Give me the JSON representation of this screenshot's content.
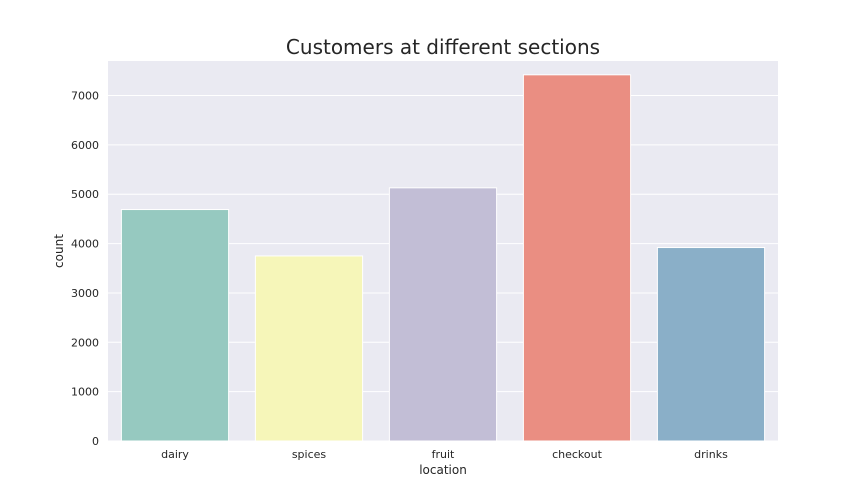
{
  "chart_data": {
    "type": "bar",
    "title": "Customers at different sections",
    "xlabel": "location",
    "ylabel": "count",
    "categories": [
      "dairy",
      "spices",
      "fruit",
      "checkout",
      "drinks"
    ],
    "values": [
      4690,
      3750,
      5130,
      7420,
      3920
    ],
    "colors": [
      "#96c9c0",
      "#f6f6b9",
      "#c2bed6",
      "#ea8e82",
      "#8aafc8"
    ],
    "ylim": [
      0,
      7700
    ],
    "yticks": [
      0,
      1000,
      2000,
      3000,
      4000,
      5000,
      6000,
      7000
    ],
    "grid": true,
    "background": "#eaeaf2"
  }
}
